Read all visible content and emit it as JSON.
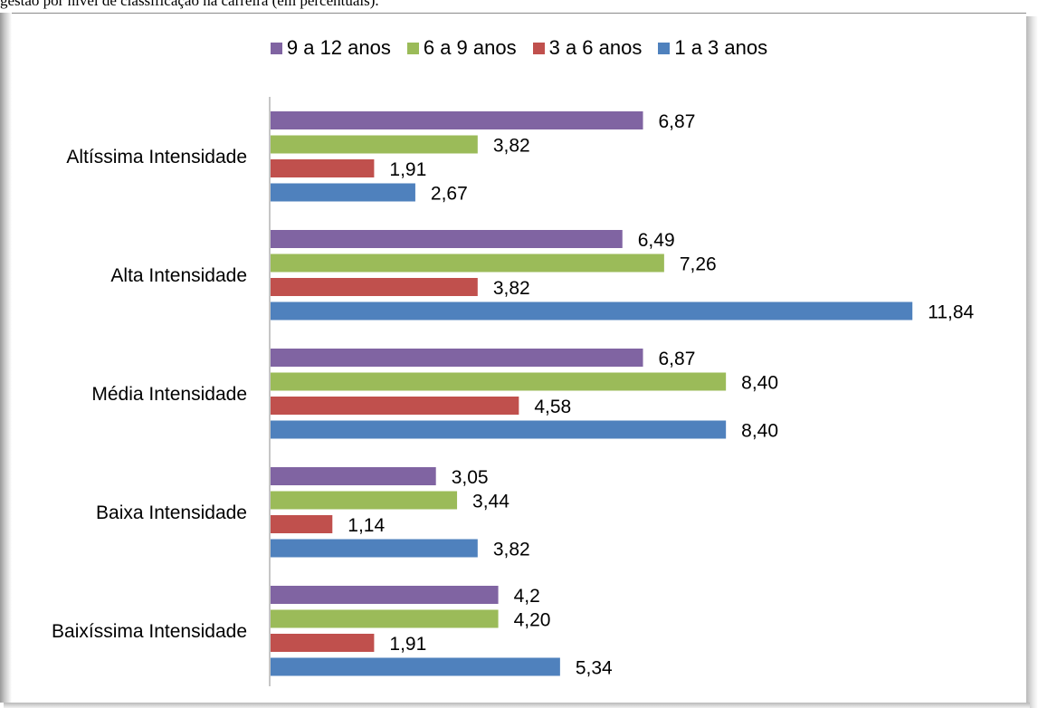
{
  "caption": "gestão por nível de classificação na carreira (em percentuais).",
  "chart_data": {
    "type": "bar",
    "orientation": "horizontal",
    "categories": [
      "Altíssima Intensidade",
      "Alta Intensidade",
      "Média Intensidade",
      "Baixa Intensidade",
      "Baixíssima Intensidade"
    ],
    "series": [
      {
        "name": "9 a 12 anos",
        "color": "#8064a2",
        "values": [
          6.87,
          6.49,
          6.87,
          3.05,
          4.2
        ],
        "labels": [
          "6,87",
          "6,49",
          "6,87",
          "3,05",
          "4,2"
        ]
      },
      {
        "name": "6 a 9 anos",
        "color": "#9bbb59",
        "values": [
          3.82,
          7.26,
          8.4,
          3.44,
          4.2
        ],
        "labels": [
          "3,82",
          "7,26",
          "8,40",
          "3,44",
          "4,20"
        ]
      },
      {
        "name": "3 a 6 anos",
        "color": "#c0504d",
        "values": [
          1.91,
          3.82,
          4.58,
          1.14,
          1.91
        ],
        "labels": [
          "1,91",
          "3,82",
          "4,58",
          "1,14",
          "1,91"
        ]
      },
      {
        "name": "1 a 3 anos",
        "color": "#4f81bd",
        "values": [
          2.67,
          11.84,
          8.4,
          3.82,
          5.34
        ],
        "labels": [
          "2,67",
          "11,84",
          "8,40",
          "3,82",
          "5,34"
        ]
      }
    ],
    "legend_position": "top",
    "xlim": [
      0,
      13
    ],
    "grid": false,
    "axis_visible": false
  }
}
